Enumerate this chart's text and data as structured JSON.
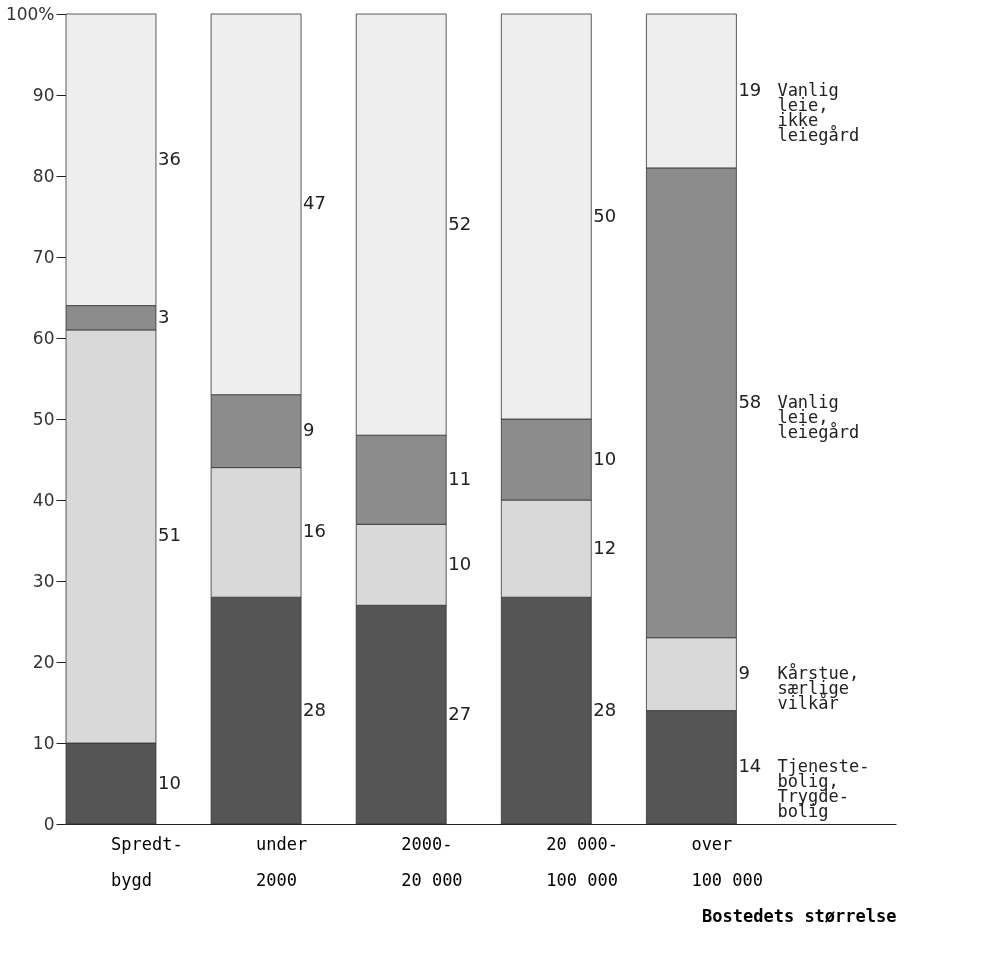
{
  "chart_data": {
    "type": "bar",
    "stacked": true,
    "xlabel": "Bostedets størrelse",
    "categories": [
      "Spredt-\nbygd",
      "under\n2000",
      "2000-\n20 000",
      "20 000-\n100 000",
      "over\n100 000"
    ],
    "series": [
      {
        "name": "Tjeneste-\nbolig,\nTrygde-\nbolig",
        "color": "#555555",
        "values": [
          10,
          28,
          27,
          28,
          14
        ]
      },
      {
        "name": "Kårstue,\nsærlige\nvilkår",
        "color": "#d9d9d9",
        "values": [
          51,
          16,
          10,
          12,
          9
        ]
      },
      {
        "name": "Vanlig\nleie,\nleiegård",
        "color": "#8c8c8c",
        "values": [
          3,
          9,
          11,
          10,
          58
        ]
      },
      {
        "name": "Vanlig\nleie,\nikke\nleiegård",
        "color": "#eeeeee",
        "values": [
          36,
          47,
          52,
          50,
          19
        ]
      }
    ],
    "ylim": [
      0,
      100
    ],
    "yticks": [
      0,
      10,
      20,
      30,
      40,
      50,
      60,
      70,
      80,
      90,
      {
        "value": 100,
        "label": "100%"
      }
    ],
    "data_labels": true,
    "legend": false,
    "grid": false
  }
}
